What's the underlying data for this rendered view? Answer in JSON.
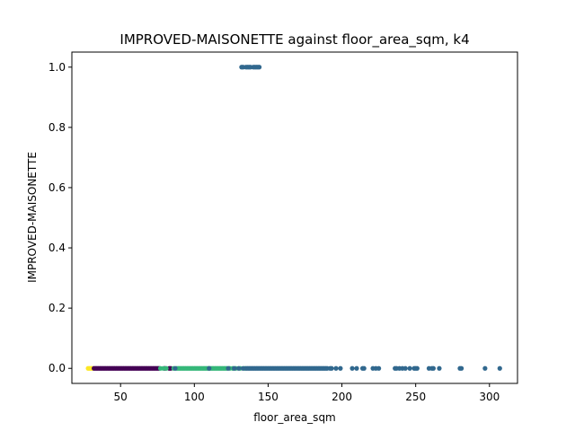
{
  "chart_data": {
    "type": "scatter",
    "title": "IMPROVED-MAISONETTE against floor_area_sqm, k4",
    "xlabel": "floor_area_sqm",
    "ylabel": "IMPROVED-MAISONETTE",
    "xlim": [
      17,
      319
    ],
    "ylim": [
      -0.05,
      1.05
    ],
    "xticks": [
      50,
      100,
      150,
      200,
      250,
      300
    ],
    "yticks": [
      0.0,
      0.2,
      0.4,
      0.6,
      0.8,
      1.0
    ],
    "xtick_labels": [
      "50",
      "100",
      "150",
      "200",
      "250",
      "300"
    ],
    "ytick_labels": [
      "0.0",
      "0.2",
      "0.4",
      "0.6",
      "0.8",
      "1.0"
    ],
    "grid": false,
    "colors": {
      "cluster_yellow": "#fde725",
      "cluster_purple": "#440154",
      "cluster_green": "#35b779",
      "cluster_blue": "#31688e"
    },
    "series": [
      {
        "color_key": "cluster_yellow",
        "points": [
          [
            28,
            0
          ],
          [
            29,
            0
          ],
          [
            30,
            0
          ],
          [
            31,
            0
          ]
        ]
      },
      {
        "color_key": "cluster_purple",
        "points": [
          [
            32,
            0
          ],
          [
            33,
            0
          ],
          [
            34,
            0
          ],
          [
            35,
            0
          ],
          [
            36,
            0
          ],
          [
            37,
            0
          ],
          [
            38,
            0
          ],
          [
            39,
            0
          ],
          [
            40,
            0
          ],
          [
            41,
            0
          ],
          [
            42,
            0
          ],
          [
            43,
            0
          ],
          [
            44,
            0
          ],
          [
            45,
            0
          ],
          [
            46,
            0
          ],
          [
            47,
            0
          ],
          [
            48,
            0
          ],
          [
            49,
            0
          ],
          [
            50,
            0
          ],
          [
            51,
            0
          ],
          [
            52,
            0
          ],
          [
            53,
            0
          ],
          [
            54,
            0
          ],
          [
            55,
            0
          ],
          [
            56,
            0
          ],
          [
            57,
            0
          ],
          [
            58,
            0
          ],
          [
            59,
            0
          ],
          [
            60,
            0
          ],
          [
            61,
            0
          ],
          [
            62,
            0
          ],
          [
            63,
            0
          ],
          [
            64,
            0
          ],
          [
            65,
            0
          ],
          [
            66,
            0
          ],
          [
            67,
            0
          ],
          [
            68,
            0
          ],
          [
            69,
            0
          ],
          [
            70,
            0
          ],
          [
            71,
            0
          ],
          [
            72,
            0
          ],
          [
            73,
            0
          ],
          [
            74,
            0
          ],
          [
            75,
            0
          ],
          [
            76,
            0
          ],
          [
            80,
            0
          ],
          [
            83,
            0
          ],
          [
            84,
            0
          ]
        ]
      },
      {
        "color_key": "cluster_green",
        "points": [
          [
            77,
            0
          ],
          [
            79,
            0
          ],
          [
            81,
            0
          ],
          [
            86,
            0
          ],
          [
            88,
            0
          ],
          [
            89,
            0
          ],
          [
            90,
            0
          ],
          [
            91,
            0
          ],
          [
            92,
            0
          ],
          [
            93,
            0
          ],
          [
            94,
            0
          ],
          [
            95,
            0
          ],
          [
            96,
            0
          ],
          [
            97,
            0
          ],
          [
            98,
            0
          ],
          [
            99,
            0
          ],
          [
            100,
            0
          ],
          [
            101,
            0
          ],
          [
            102,
            0
          ],
          [
            103,
            0
          ],
          [
            104,
            0
          ],
          [
            105,
            0
          ],
          [
            106,
            0
          ],
          [
            107,
            0
          ],
          [
            108,
            0
          ],
          [
            109,
            0
          ],
          [
            110,
            0
          ],
          [
            111,
            0
          ],
          [
            112,
            0
          ],
          [
            113,
            0
          ],
          [
            114,
            0
          ],
          [
            115,
            0
          ],
          [
            116,
            0
          ],
          [
            117,
            0
          ],
          [
            118,
            0
          ],
          [
            119,
            0
          ],
          [
            120,
            0
          ],
          [
            121,
            0
          ],
          [
            122,
            0
          ],
          [
            124,
            0
          ],
          [
            126,
            0
          ],
          [
            128,
            0
          ],
          [
            131,
            0
          ],
          [
            134,
            0
          ]
        ]
      },
      {
        "color_key": "cluster_blue",
        "points": [
          [
            87,
            0
          ],
          [
            110,
            0
          ],
          [
            123,
            0
          ],
          [
            127,
            0
          ],
          [
            130,
            0
          ],
          [
            133,
            0
          ],
          [
            135,
            0
          ],
          [
            136,
            0
          ],
          [
            137,
            0
          ],
          [
            138,
            0
          ],
          [
            139,
            0
          ],
          [
            140,
            0
          ],
          [
            141,
            0
          ],
          [
            142,
            0
          ],
          [
            143,
            0
          ],
          [
            144,
            0
          ],
          [
            145,
            0
          ],
          [
            146,
            0
          ],
          [
            147,
            0
          ],
          [
            148,
            0
          ],
          [
            149,
            0
          ],
          [
            150,
            0
          ],
          [
            151,
            0
          ],
          [
            152,
            0
          ],
          [
            153,
            0
          ],
          [
            154,
            0
          ],
          [
            155,
            0
          ],
          [
            156,
            0
          ],
          [
            157,
            0
          ],
          [
            158,
            0
          ],
          [
            159,
            0
          ],
          [
            160,
            0
          ],
          [
            161,
            0
          ],
          [
            162,
            0
          ],
          [
            163,
            0
          ],
          [
            164,
            0
          ],
          [
            165,
            0
          ],
          [
            166,
            0
          ],
          [
            167,
            0
          ],
          [
            168,
            0
          ],
          [
            169,
            0
          ],
          [
            170,
            0
          ],
          [
            171,
            0
          ],
          [
            172,
            0
          ],
          [
            173,
            0
          ],
          [
            174,
            0
          ],
          [
            175,
            0
          ],
          [
            176,
            0
          ],
          [
            177,
            0
          ],
          [
            178,
            0
          ],
          [
            179,
            0
          ],
          [
            180,
            0
          ],
          [
            181,
            0
          ],
          [
            182,
            0
          ],
          [
            183,
            0
          ],
          [
            184,
            0
          ],
          [
            185,
            0
          ],
          [
            186,
            0
          ],
          [
            187,
            0
          ],
          [
            188,
            0
          ],
          [
            189,
            0
          ],
          [
            190,
            0
          ],
          [
            192,
            0
          ],
          [
            193,
            0
          ],
          [
            196,
            0
          ],
          [
            199,
            0
          ],
          [
            207,
            0
          ],
          [
            210,
            0
          ],
          [
            214,
            0
          ],
          [
            215,
            0
          ],
          [
            221,
            0
          ],
          [
            223,
            0
          ],
          [
            225,
            0
          ],
          [
            236,
            0
          ],
          [
            237,
            0
          ],
          [
            239,
            0
          ],
          [
            241,
            0
          ],
          [
            243,
            0
          ],
          [
            246,
            0
          ],
          [
            249,
            0
          ],
          [
            250,
            0
          ],
          [
            251,
            0
          ],
          [
            259,
            0
          ],
          [
            261,
            0
          ],
          [
            262,
            0
          ],
          [
            266,
            0
          ],
          [
            280,
            0
          ],
          [
            281,
            0
          ],
          [
            297,
            0
          ],
          [
            307,
            0
          ],
          [
            132,
            1
          ],
          [
            133,
            1
          ],
          [
            135,
            1
          ],
          [
            136,
            1
          ],
          [
            137,
            1
          ],
          [
            138,
            1
          ],
          [
            140,
            1
          ],
          [
            141,
            1
          ],
          [
            142,
            1
          ],
          [
            143,
            1
          ],
          [
            144,
            1
          ]
        ]
      }
    ]
  }
}
